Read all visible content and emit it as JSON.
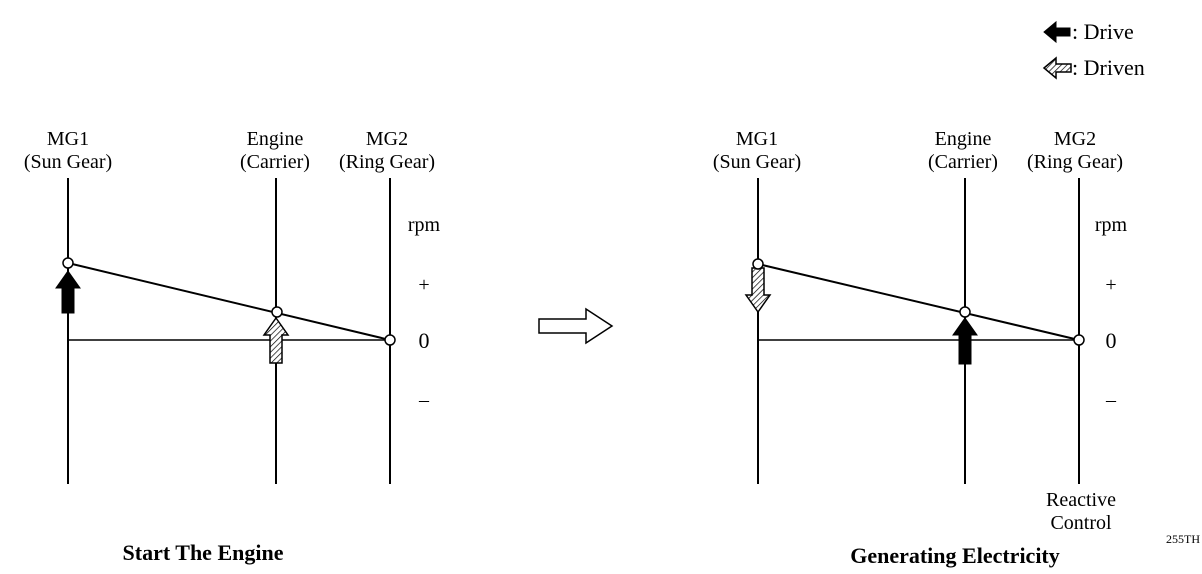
{
  "legend": {
    "drive_label": ": Drive",
    "driven_label": ": Driven"
  },
  "diagrams": [
    {
      "title": "Start The Engine",
      "mg1_label_1": "MG1",
      "mg1_label_2": "(Sun Gear)",
      "engine_label_1": "Engine",
      "engine_label_2": "(Carrier)",
      "mg2_label_1": "MG2",
      "mg2_label_2": "(Ring Gear)",
      "rpm_label": "rpm",
      "plus_label": "+",
      "zero_label": "0",
      "minus_label": "–"
    },
    {
      "title": "Generating Electricity",
      "mg1_label_1": "MG1",
      "mg1_label_2": "(Sun Gear)",
      "engine_label_1": "Engine",
      "engine_label_2": "(Carrier)",
      "mg2_label_1": "MG2",
      "mg2_label_2": "(Ring Gear)",
      "rpm_label": "rpm",
      "plus_label": "+",
      "zero_label": "0",
      "minus_label": "–",
      "reactive_label_1": "Reactive",
      "reactive_label_2": "Control"
    }
  ],
  "figure_code": "255TH",
  "icons": {
    "drive_arrow": "solid-arrow-icon",
    "driven_arrow": "hatched-arrow-icon",
    "transition_arrow": "hollow-right-arrow-icon"
  }
}
